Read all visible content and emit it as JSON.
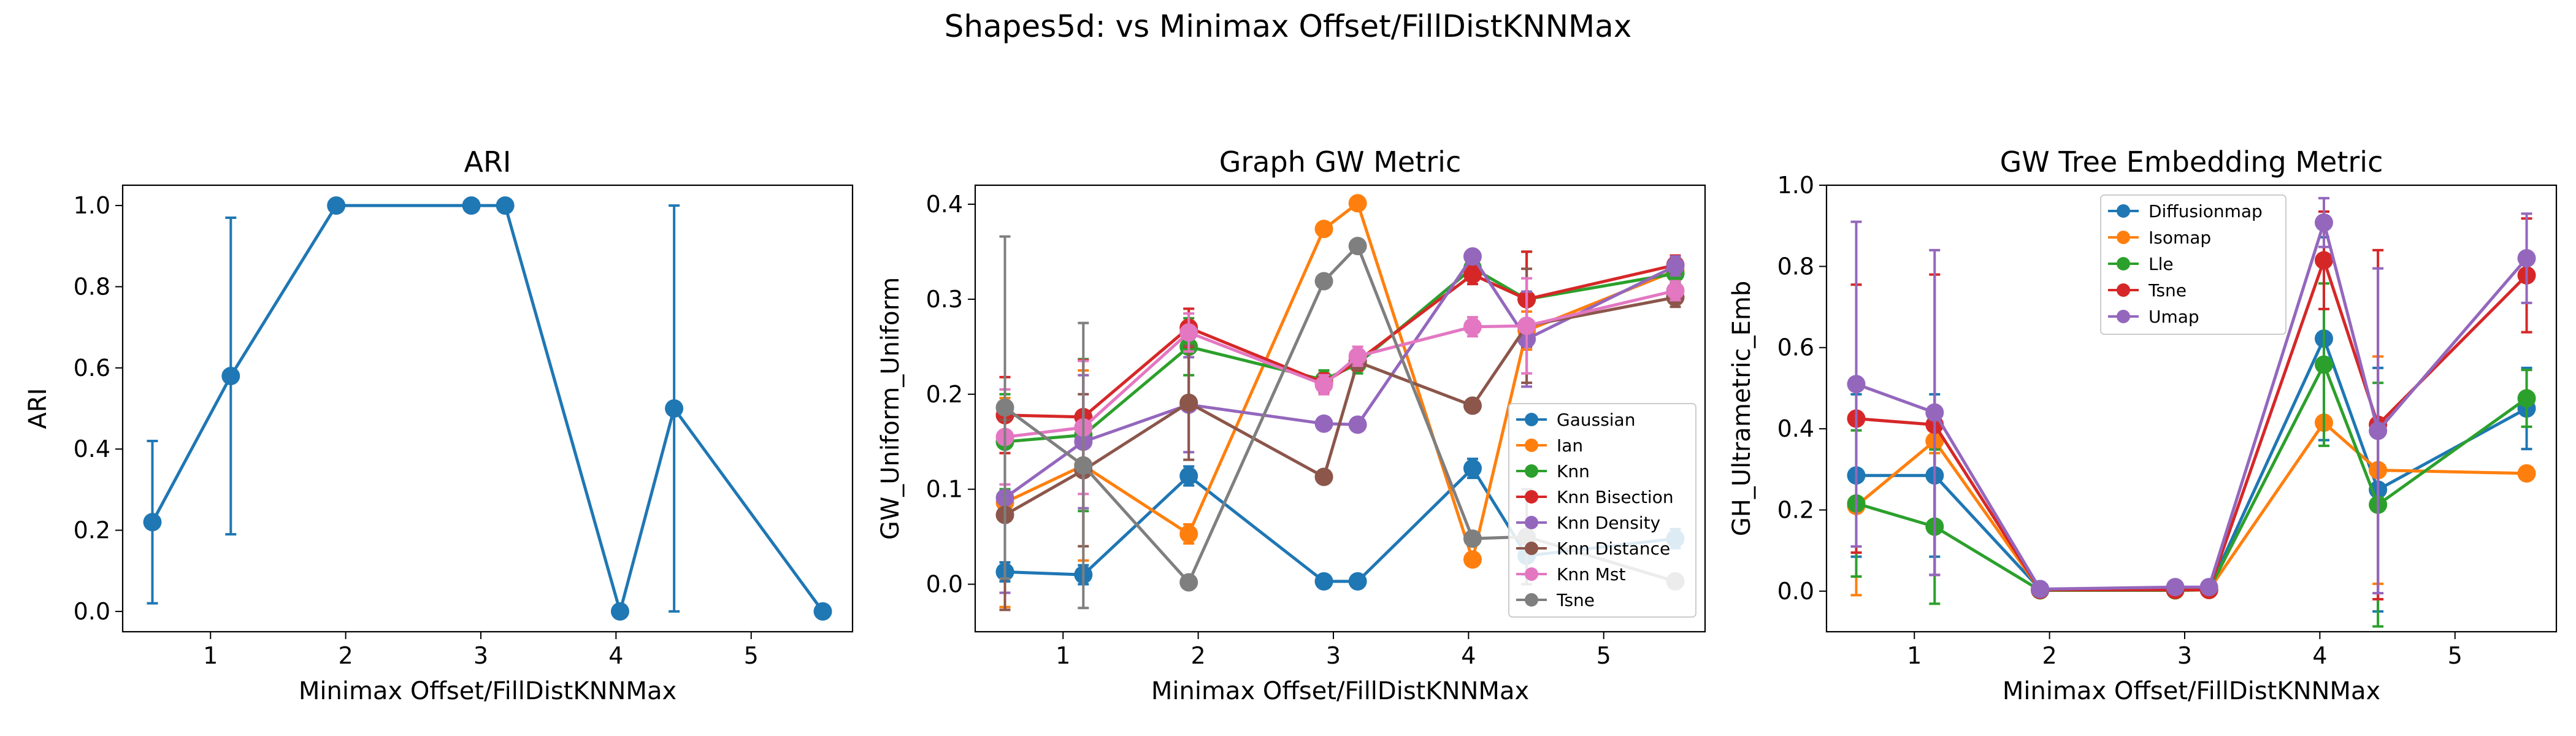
{
  "figure_title": "Shapes5d: vs Minimax Offset/FillDistKNNMax",
  "chart_data": [
    {
      "type": "line",
      "title": "ARI",
      "xlabel": "Minimax Offset/FillDistKNNMax",
      "ylabel": "ARI",
      "xlim": [
        0.35,
        5.75
      ],
      "ylim": [
        -0.05,
        1.05
      ],
      "xticks": [
        1,
        2,
        3,
        4,
        5
      ],
      "yticks": [
        0.0,
        0.2,
        0.4,
        0.6,
        0.8,
        1.0
      ],
      "ytick_labels": [
        "0.0",
        "0.2",
        "0.4",
        "0.6",
        "0.8",
        "1.0"
      ],
      "x": [
        0.57,
        1.15,
        1.93,
        2.93,
        3.18,
        4.03,
        4.43,
        5.53
      ],
      "grid": false,
      "legend": null,
      "series": [
        {
          "color": "#1f77b4",
          "values": [
            0.22,
            0.58,
            1.0,
            1.0,
            1.0,
            0.0,
            0.5,
            0.0
          ],
          "err": [
            0.2,
            0.39,
            0,
            0,
            0,
            0,
            0.5,
            0
          ]
        }
      ]
    },
    {
      "type": "line",
      "title": "Graph GW Metric",
      "xlabel": "Minimax Offset/FillDistKNNMax",
      "ylabel": "GW_Uniform_Uniform",
      "xlim": [
        0.35,
        5.75
      ],
      "ylim": [
        -0.05,
        0.42
      ],
      "xticks": [
        1,
        2,
        3,
        4,
        5
      ],
      "yticks": [
        0.0,
        0.1,
        0.2,
        0.3,
        0.4
      ],
      "ytick_labels": [
        "0.0",
        "0.1",
        "0.2",
        "0.3",
        "0.4"
      ],
      "x": [
        0.57,
        1.15,
        1.93,
        2.93,
        3.18,
        4.03,
        4.43,
        5.53
      ],
      "grid": false,
      "legend": "lower-right",
      "series": [
        {
          "name": "Gaussian",
          "color": "#1f77b4",
          "values": [
            0.013,
            0.01,
            0.114,
            0.003,
            0.003,
            0.122,
            0.03,
            0.048
          ],
          "err": [
            0.01,
            0.01,
            0.01,
            0,
            0,
            0.01,
            0.02,
            0.01
          ]
        },
        {
          "name": "Ian",
          "color": "#ff7f0e",
          "values": [
            0.086,
            0.125,
            0.053,
            0.374,
            0.401,
            0.026,
            0.267,
            0.33
          ],
          "err": [
            0.11,
            0.1,
            0.01,
            0,
            0,
            0,
            0.02,
            0.01
          ]
        },
        {
          "name": "Knn",
          "color": "#2ca02c",
          "values": [
            0.15,
            0.157,
            0.25,
            0.215,
            0.232,
            0.333,
            0.3,
            0.327
          ],
          "err": [
            0.05,
            0.08,
            0.03,
            0.01,
            0.01,
            0.01,
            0.05,
            0.01
          ]
        },
        {
          "name": "Knn Bisection",
          "color": "#d62728",
          "values": [
            0.178,
            0.176,
            0.27,
            0.212,
            0.235,
            0.326,
            0.3,
            0.336
          ],
          "err": [
            0.04,
            0.06,
            0.02,
            0.01,
            0.01,
            0.01,
            0.05,
            0.01
          ]
        },
        {
          "name": "Knn Density",
          "color": "#9467bd",
          "values": [
            0.091,
            0.15,
            0.189,
            0.169,
            0.168,
            0.345,
            0.258,
            0.335
          ],
          "err": [
            0.1,
            0.07,
            0.05,
            0,
            0,
            0,
            0.05,
            0.01
          ]
        },
        {
          "name": "Knn Distance",
          "color": "#8c564b",
          "values": [
            0.073,
            0.12,
            0.191,
            0.113,
            0.234,
            0.188,
            0.272,
            0.302
          ],
          "err": [
            0.1,
            0.08,
            0.06,
            0,
            0,
            0,
            0.06,
            0.01
          ]
        },
        {
          "name": "Knn Mst",
          "color": "#e377c2",
          "values": [
            0.155,
            0.165,
            0.265,
            0.21,
            0.24,
            0.271,
            0.272,
            0.309
          ],
          "err": [
            0.05,
            0.07,
            0.02,
            0.01,
            0.01,
            0.01,
            0.05,
            0.01
          ]
        },
        {
          "name": "Tsne",
          "color": "#7f7f7f",
          "values": [
            0.186,
            0.125,
            0.002,
            0.319,
            0.356,
            0.048,
            0.05,
            0.003
          ],
          "err": [
            0.18,
            0.15,
            0,
            0,
            0,
            0,
            0.05,
            0
          ]
        }
      ]
    },
    {
      "type": "line",
      "title": "GW Tree Embedding Metric",
      "xlabel": "Minimax Offset/FillDistKNNMax",
      "ylabel": "GH_Ultrametric_Emb",
      "xlim": [
        0.35,
        5.75
      ],
      "ylim": [
        -0.1,
        1.0
      ],
      "xticks": [
        1,
        2,
        3,
        4,
        5
      ],
      "yticks": [
        0.0,
        0.2,
        0.4,
        0.6,
        0.8,
        1.0
      ],
      "ytick_labels": [
        "0.0",
        "0.2",
        "0.4",
        "0.6",
        "0.8",
        "1.0"
      ],
      "x": [
        0.57,
        1.15,
        1.93,
        2.93,
        3.18,
        4.03,
        4.43,
        5.53
      ],
      "grid": false,
      "legend": "upper-center",
      "series": [
        {
          "name": "Diffusionmap",
          "color": "#1f77b4",
          "values": [
            0.285,
            0.285,
            0.005,
            0.003,
            0.005,
            0.622,
            0.25,
            0.45
          ],
          "err": [
            0.2,
            0.2,
            0.005,
            0.002,
            0.002,
            0.25,
            0.3,
            0.1
          ]
        },
        {
          "name": "Isomap",
          "color": "#ff7f0e",
          "values": [
            0.21,
            0.37,
            0.003,
            0.002,
            0.003,
            0.415,
            0.298,
            0.29
          ],
          "err": [
            0.22,
            0.03,
            0.002,
            0.001,
            0.001,
            0.01,
            0.28,
            0.01
          ]
        },
        {
          "name": "Lle",
          "color": "#2ca02c",
          "values": [
            0.216,
            0.159,
            0.002,
            0.002,
            0.003,
            0.558,
            0.213,
            0.475
          ],
          "err": [
            0.18,
            0.19,
            0.002,
            0.001,
            0.001,
            0.2,
            0.3,
            0.07
          ]
        },
        {
          "name": "Tsne",
          "color": "#d62728",
          "values": [
            0.425,
            0.41,
            0.003,
            0.003,
            0.003,
            0.815,
            0.41,
            0.778
          ],
          "err": [
            0.33,
            0.37,
            0.002,
            0.001,
            0.001,
            0.12,
            0.43,
            0.14
          ]
        },
        {
          "name": "Umap",
          "color": "#9467bd",
          "values": [
            0.51,
            0.44,
            0.005,
            0.01,
            0.01,
            0.908,
            0.395,
            0.82
          ],
          "err": [
            0.4,
            0.4,
            0.005,
            0.005,
            0.005,
            0.06,
            0.4,
            0.11
          ]
        }
      ]
    }
  ]
}
